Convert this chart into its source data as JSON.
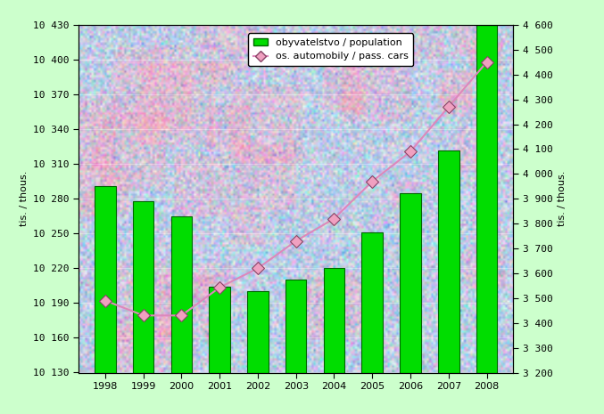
{
  "years": [
    1998,
    1999,
    2000,
    2001,
    2002,
    2003,
    2004,
    2005,
    2006,
    2007,
    2008
  ],
  "population": [
    10291,
    10278,
    10265,
    10204,
    10200,
    10210,
    10220,
    10251,
    10285,
    10322,
    10430
  ],
  "pass_cars": [
    3490,
    3430,
    3430,
    3543,
    3620,
    3730,
    3820,
    3970,
    4090,
    4270,
    4450
  ],
  "bar_color_face": "#00dd00",
  "bar_color_edge": "#006600",
  "line_color": "#dd88bb",
  "marker_face_color": "#f0a0c0",
  "marker_edge_color": "#884466",
  "background_plot_base": "#b8cce8",
  "background_fig": "#ccffcc",
  "left_ylim": [
    10130,
    10430
  ],
  "right_ylim": [
    3200,
    4600
  ],
  "left_ytick_vals": [
    10130,
    10160,
    10190,
    10220,
    10250,
    10280,
    10310,
    10340,
    10370,
    10400,
    10430
  ],
  "right_ytick_vals": [
    3200,
    3300,
    3400,
    3500,
    3600,
    3700,
    3800,
    3900,
    4000,
    4100,
    4200,
    4300,
    4400,
    4500,
    4600
  ],
  "left_ytick_labels": [
    "10 130",
    "10 160",
    "10 190",
    "10 220",
    "10 250",
    "10 280",
    "10 310",
    "10 340",
    "10 370",
    "10 400",
    "10 430"
  ],
  "right_ytick_labels": [
    "3 200",
    "3 300",
    "3 400",
    "3 500",
    "3 600",
    "3 700",
    "3 800",
    "3 900",
    "4 000",
    "4 100",
    "4 200",
    "4 300",
    "4 400",
    "4 500",
    "4 600"
  ],
  "left_ylabel": "tis. / thous.",
  "right_ylabel": "tis. / thous.",
  "legend_pop": "obyvatelstvo / population",
  "legend_cars": "os. automobily / pass. cars",
  "tick_fontsize": 8,
  "label_fontsize": 8,
  "bar_width": 0.55
}
